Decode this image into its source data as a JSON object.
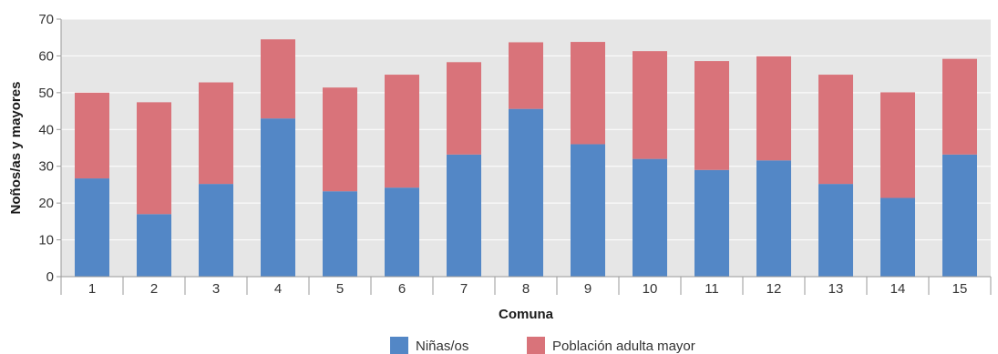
{
  "chart_data": {
    "type": "bar",
    "stacked": true,
    "xlabel": "Comuna",
    "ylabel": "Noños/as y mayores",
    "ylim": [
      0,
      70
    ],
    "yticks": [
      0,
      10,
      20,
      30,
      40,
      50,
      60,
      70
    ],
    "grid": true,
    "legend": "bottom",
    "categories": [
      "1",
      "2",
      "3",
      "4",
      "5",
      "6",
      "7",
      "8",
      "9",
      "10",
      "11",
      "12",
      "13",
      "14",
      "15"
    ],
    "series": [
      {
        "name": "Niñas/os",
        "color": "#5387c6",
        "values": [
          26.7,
          17.0,
          25.2,
          43.0,
          23.2,
          24.2,
          33.2,
          45.6,
          36.0,
          32.0,
          29.0,
          31.6,
          25.2,
          21.4,
          33.2
        ]
      },
      {
        "name": "Población adulta mayor",
        "color": "#d9737a",
        "values": [
          23.3,
          30.4,
          27.6,
          21.5,
          28.2,
          30.7,
          25.1,
          18.1,
          27.8,
          29.3,
          29.6,
          28.3,
          29.7,
          28.7,
          26.0
        ]
      }
    ]
  }
}
